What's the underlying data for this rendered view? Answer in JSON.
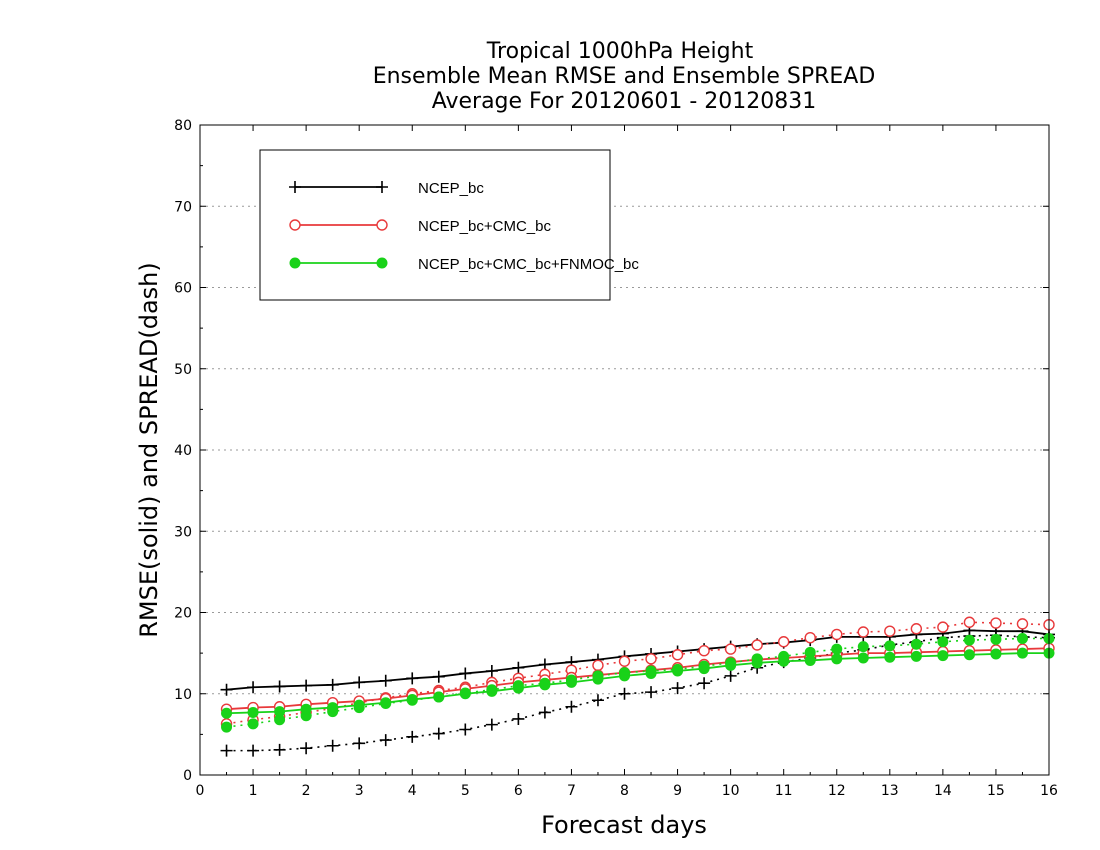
{
  "chart_data": {
    "type": "line",
    "title_lines": [
      "Tropical 1000hPa Height",
      "Ensemble Mean RMSE and Ensemble SPREAD",
      "Average For 20120601 - 20120831"
    ],
    "xlabel": "Forecast days",
    "ylabel": "RMSE(solid) and SPREAD(dash)",
    "xlim": [
      0,
      16
    ],
    "ylim": [
      0,
      80
    ],
    "x_ticks": [
      0,
      1,
      2,
      3,
      4,
      5,
      6,
      7,
      8,
      9,
      10,
      11,
      12,
      13,
      14,
      15,
      16
    ],
    "y_ticks": [
      0,
      10,
      20,
      30,
      40,
      50,
      60,
      70,
      80
    ],
    "grid": "horizontal dotted",
    "legend_position": "top-left",
    "x": [
      0.5,
      1,
      1.5,
      2,
      2.5,
      3,
      3.5,
      4,
      4.5,
      5,
      5.5,
      6,
      6.5,
      7,
      7.5,
      8,
      8.5,
      9,
      9.5,
      10,
      10.5,
      11,
      11.5,
      12,
      12.5,
      13,
      13.5,
      14,
      14.5,
      15,
      15.5,
      16
    ],
    "series": [
      {
        "name": "NCEP_bc",
        "color": "#000000",
        "marker": "plus",
        "rmse": [
          10.5,
          10.8,
          10.9,
          11.0,
          11.1,
          11.4,
          11.6,
          11.9,
          12.1,
          12.5,
          12.8,
          13.2,
          13.6,
          13.9,
          14.2,
          14.6,
          14.9,
          15.2,
          15.5,
          15.8,
          16.1,
          16.3,
          16.6,
          17.0,
          17.0,
          17.0,
          17.3,
          17.4,
          17.8,
          17.7,
          17.7,
          17.3
        ],
        "spread": [
          3.0,
          3.0,
          3.1,
          3.3,
          3.6,
          3.9,
          4.3,
          4.7,
          5.1,
          5.6,
          6.2,
          6.9,
          7.7,
          8.4,
          9.2,
          10.0,
          10.2,
          10.7,
          11.3,
          12.2,
          13.2,
          13.9,
          14.4,
          15.0,
          15.4,
          16.0,
          16.4,
          16.9,
          17.1,
          17.2,
          17.0,
          16.9
        ]
      },
      {
        "name": "NCEP_bc+CMC_bc",
        "color": "#e8393b",
        "marker": "open-circle",
        "rmse": [
          8.1,
          8.3,
          8.4,
          8.7,
          8.9,
          9.1,
          9.4,
          9.8,
          10.2,
          10.6,
          11.0,
          11.4,
          11.7,
          12.0,
          12.3,
          12.6,
          12.9,
          13.2,
          13.6,
          13.9,
          14.2,
          14.4,
          14.6,
          14.8,
          15.0,
          15.0,
          15.1,
          15.2,
          15.3,
          15.4,
          15.5,
          15.6
        ],
        "spread": [
          6.3,
          6.8,
          7.2,
          7.7,
          8.2,
          8.9,
          9.5,
          10.0,
          10.4,
          10.8,
          11.4,
          11.9,
          12.4,
          12.9,
          13.5,
          14.0,
          14.3,
          14.8,
          15.3,
          15.5,
          16.0,
          16.4,
          16.9,
          17.3,
          17.6,
          17.7,
          18.0,
          18.2,
          18.8,
          18.7,
          18.6,
          18.5
        ]
      },
      {
        "name": "NCEP_bc+CMC_bc+FNMOC_bc",
        "color": "#19d219",
        "marker": "filled-circle",
        "rmse": [
          7.6,
          7.7,
          7.8,
          8.1,
          8.3,
          8.6,
          8.9,
          9.3,
          9.6,
          10.0,
          10.3,
          10.7,
          11.1,
          11.4,
          11.8,
          12.2,
          12.5,
          12.8,
          13.1,
          13.5,
          13.8,
          14.0,
          14.1,
          14.3,
          14.4,
          14.5,
          14.6,
          14.7,
          14.8,
          14.9,
          15.0,
          15.0
        ],
        "spread": [
          5.9,
          6.3,
          6.8,
          7.3,
          7.8,
          8.3,
          8.8,
          9.2,
          9.6,
          10.1,
          10.5,
          11.0,
          11.3,
          11.7,
          12.2,
          12.6,
          12.8,
          13.0,
          13.4,
          13.8,
          14.3,
          14.6,
          15.1,
          15.5,
          15.8,
          15.9,
          16.1,
          16.4,
          16.6,
          16.7,
          16.8,
          16.8
        ]
      }
    ]
  }
}
